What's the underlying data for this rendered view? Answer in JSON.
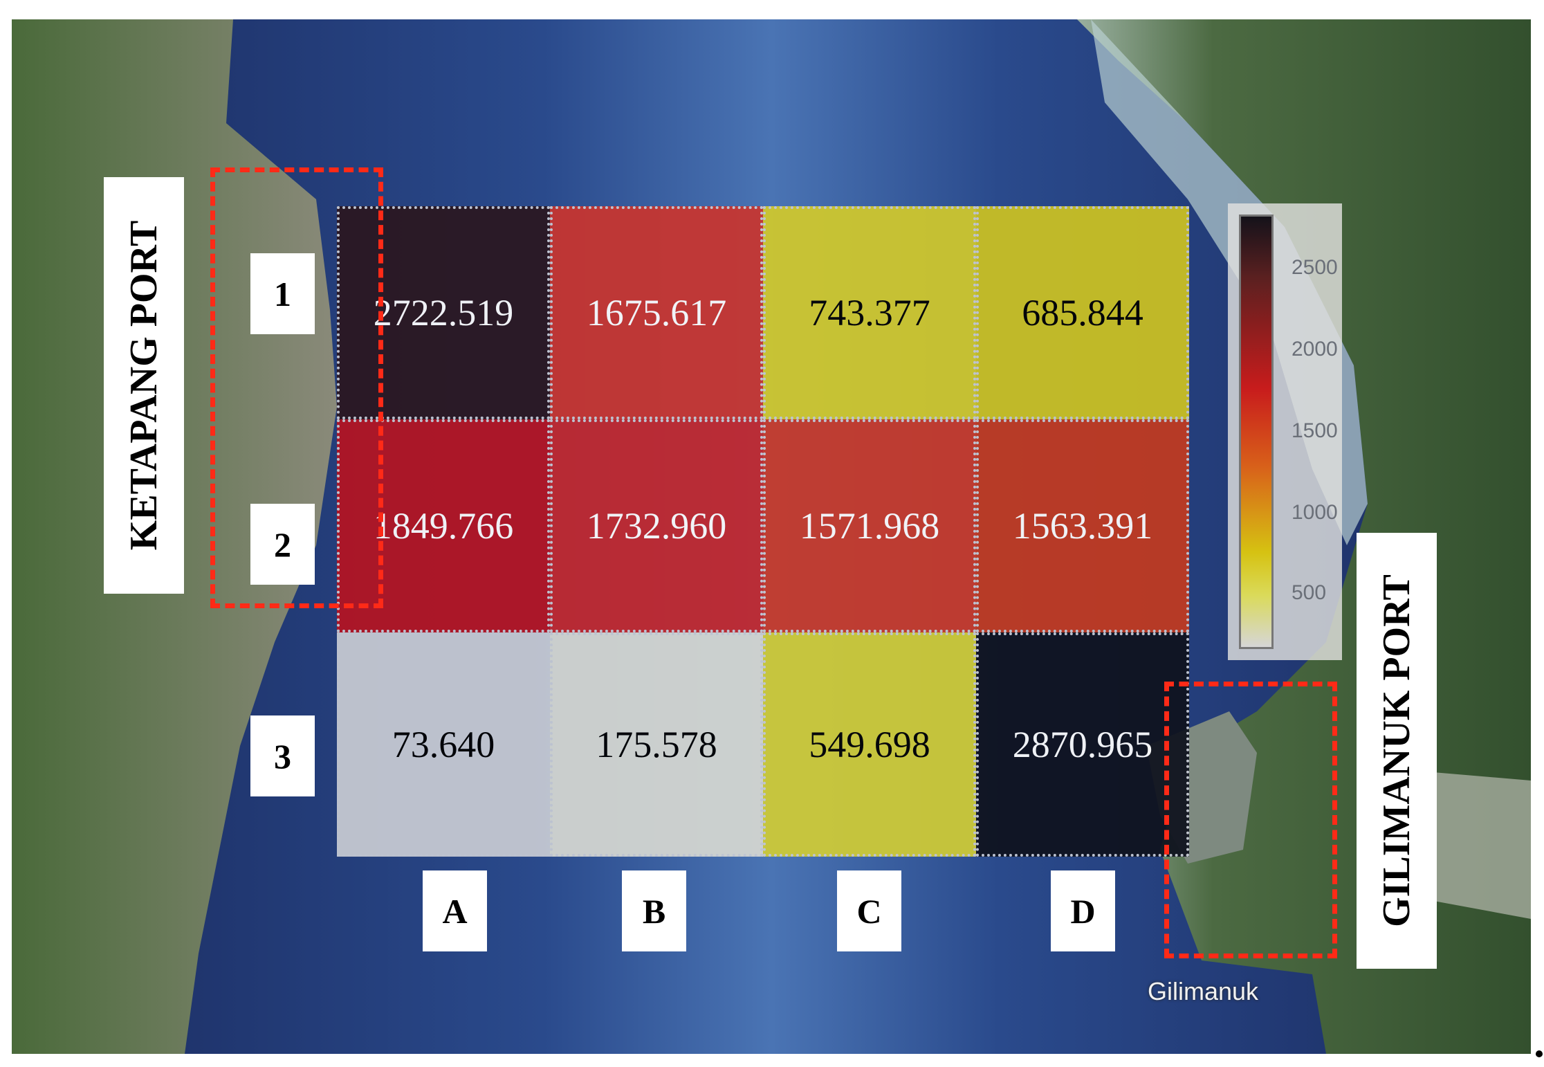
{
  "ports": {
    "left": "KETAPANG PORT",
    "right": "GILIMANUK PORT"
  },
  "place_name": "Gilimanuk",
  "rows": [
    "1",
    "2",
    "3"
  ],
  "columns": [
    "A",
    "B",
    "C",
    "D"
  ],
  "cells": [
    [
      {
        "value": "2722.519",
        "color": "#2b1720",
        "text_color": "#ffffff"
      },
      {
        "value": "1675.617",
        "color": "#c9352f",
        "text_color": "#ffffff"
      },
      {
        "value": "743.377",
        "color": "#d1c92c",
        "text_color": "#000000"
      },
      {
        "value": "685.844",
        "color": "#ccc222",
        "text_color": "#000000"
      }
    ],
    [
      {
        "value": "1849.766",
        "color": "#b51422",
        "text_color": "#ffffff"
      },
      {
        "value": "1732.960",
        "color": "#c2282e",
        "text_color": "#ffffff"
      },
      {
        "value": "1571.968",
        "color": "#c83a2a",
        "text_color": "#ffffff"
      },
      {
        "value": "1563.391",
        "color": "#c23a20",
        "text_color": "#ffffff"
      }
    ],
    [
      {
        "value": "73.640",
        "color": "#c8cbd3",
        "text_color": "#000000"
      },
      {
        "value": "175.578",
        "color": "#d6d8d2",
        "text_color": "#000000"
      },
      {
        "value": "549.698",
        "color": "#d0cc36",
        "text_color": "#000000"
      },
      {
        "value": "2870.965",
        "color": "#0f121e",
        "text_color": "#ffffff"
      }
    ]
  ],
  "legend": {
    "ticks": [
      "2500",
      "2000",
      "1500",
      "1000",
      "500"
    ]
  }
}
